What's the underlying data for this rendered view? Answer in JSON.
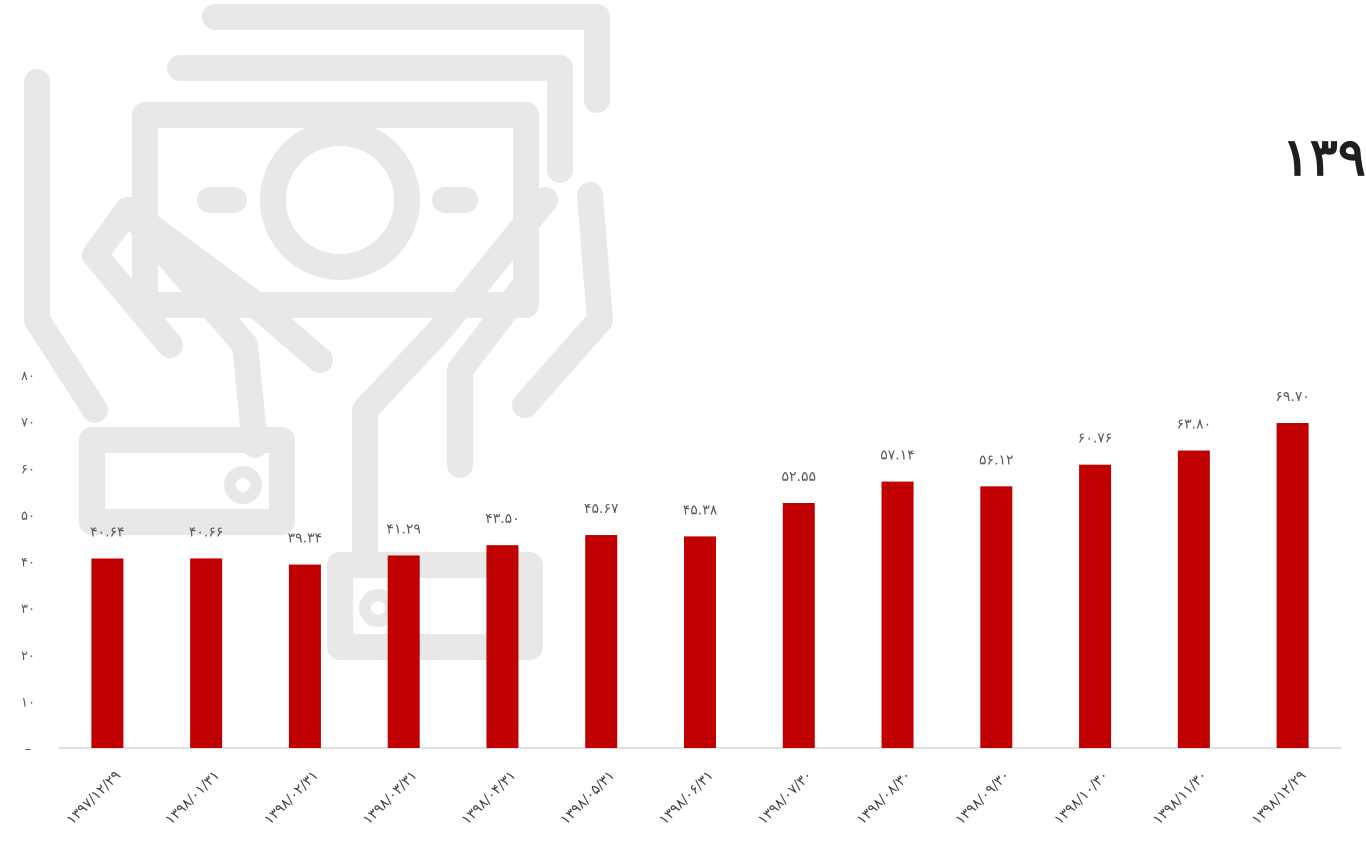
{
  "title_fragment": "۱۳۹",
  "background_icon": "hands-holding-money-icon",
  "colors": {
    "bar": "#C00000",
    "axis": "#d9d9d9",
    "watermark": "#e8e8e8"
  },
  "chart_data": {
    "type": "bar",
    "title": "۱۳۹",
    "categories": [
      "۱۳۹۷/۱۲/۲۹",
      "۱۳۹۸/۰۱/۳۱",
      "۱۳۹۸/۰۲/۳۱",
      "۱۳۹۸/۰۳/۳۱",
      "۱۳۹۸/۰۴/۳۱",
      "۱۳۹۸/۰۵/۳۱",
      "۱۳۹۸/۰۶/۳۱",
      "۱۳۹۸/۰۷/۳۰",
      "۱۳۹۸/۰۸/۳۰",
      "۱۳۹۸/۰۹/۳۰",
      "۱۳۹۸/۱۰/۳۰",
      "۱۳۹۸/۱۱/۳۰",
      "۱۳۹۸/۱۲/۲۹"
    ],
    "values": [
      40.64,
      40.66,
      39.34,
      41.29,
      43.5,
      45.67,
      45.38,
      52.55,
      57.14,
      56.12,
      60.76,
      63.8,
      69.7
    ],
    "value_labels": [
      "۴۰.۶۴",
      "۴۰.۶۶",
      "۳۹.۳۴",
      "۴۱.۲۹",
      "۴۳.۵۰",
      "۴۵.۶۷",
      "۴۵.۳۸",
      "۵۲.۵۵",
      "۵۷.۱۴",
      "۵۶.۱۲",
      "۶۰.۷۶",
      "۶۳.۸۰",
      "۶۹.۷۰"
    ],
    "ylim": [
      0,
      80
    ],
    "yticks": [
      0,
      10,
      20,
      30,
      40,
      50,
      60,
      70,
      80
    ],
    "ytick_labels": [
      "–",
      "۱۰",
      "۲۰",
      "۳۰",
      "۴۰",
      "۵۰",
      "۶۰",
      "۷۰",
      "۸۰"
    ],
    "grid": false,
    "legend": "none",
    "xlabel": "",
    "ylabel": ""
  }
}
